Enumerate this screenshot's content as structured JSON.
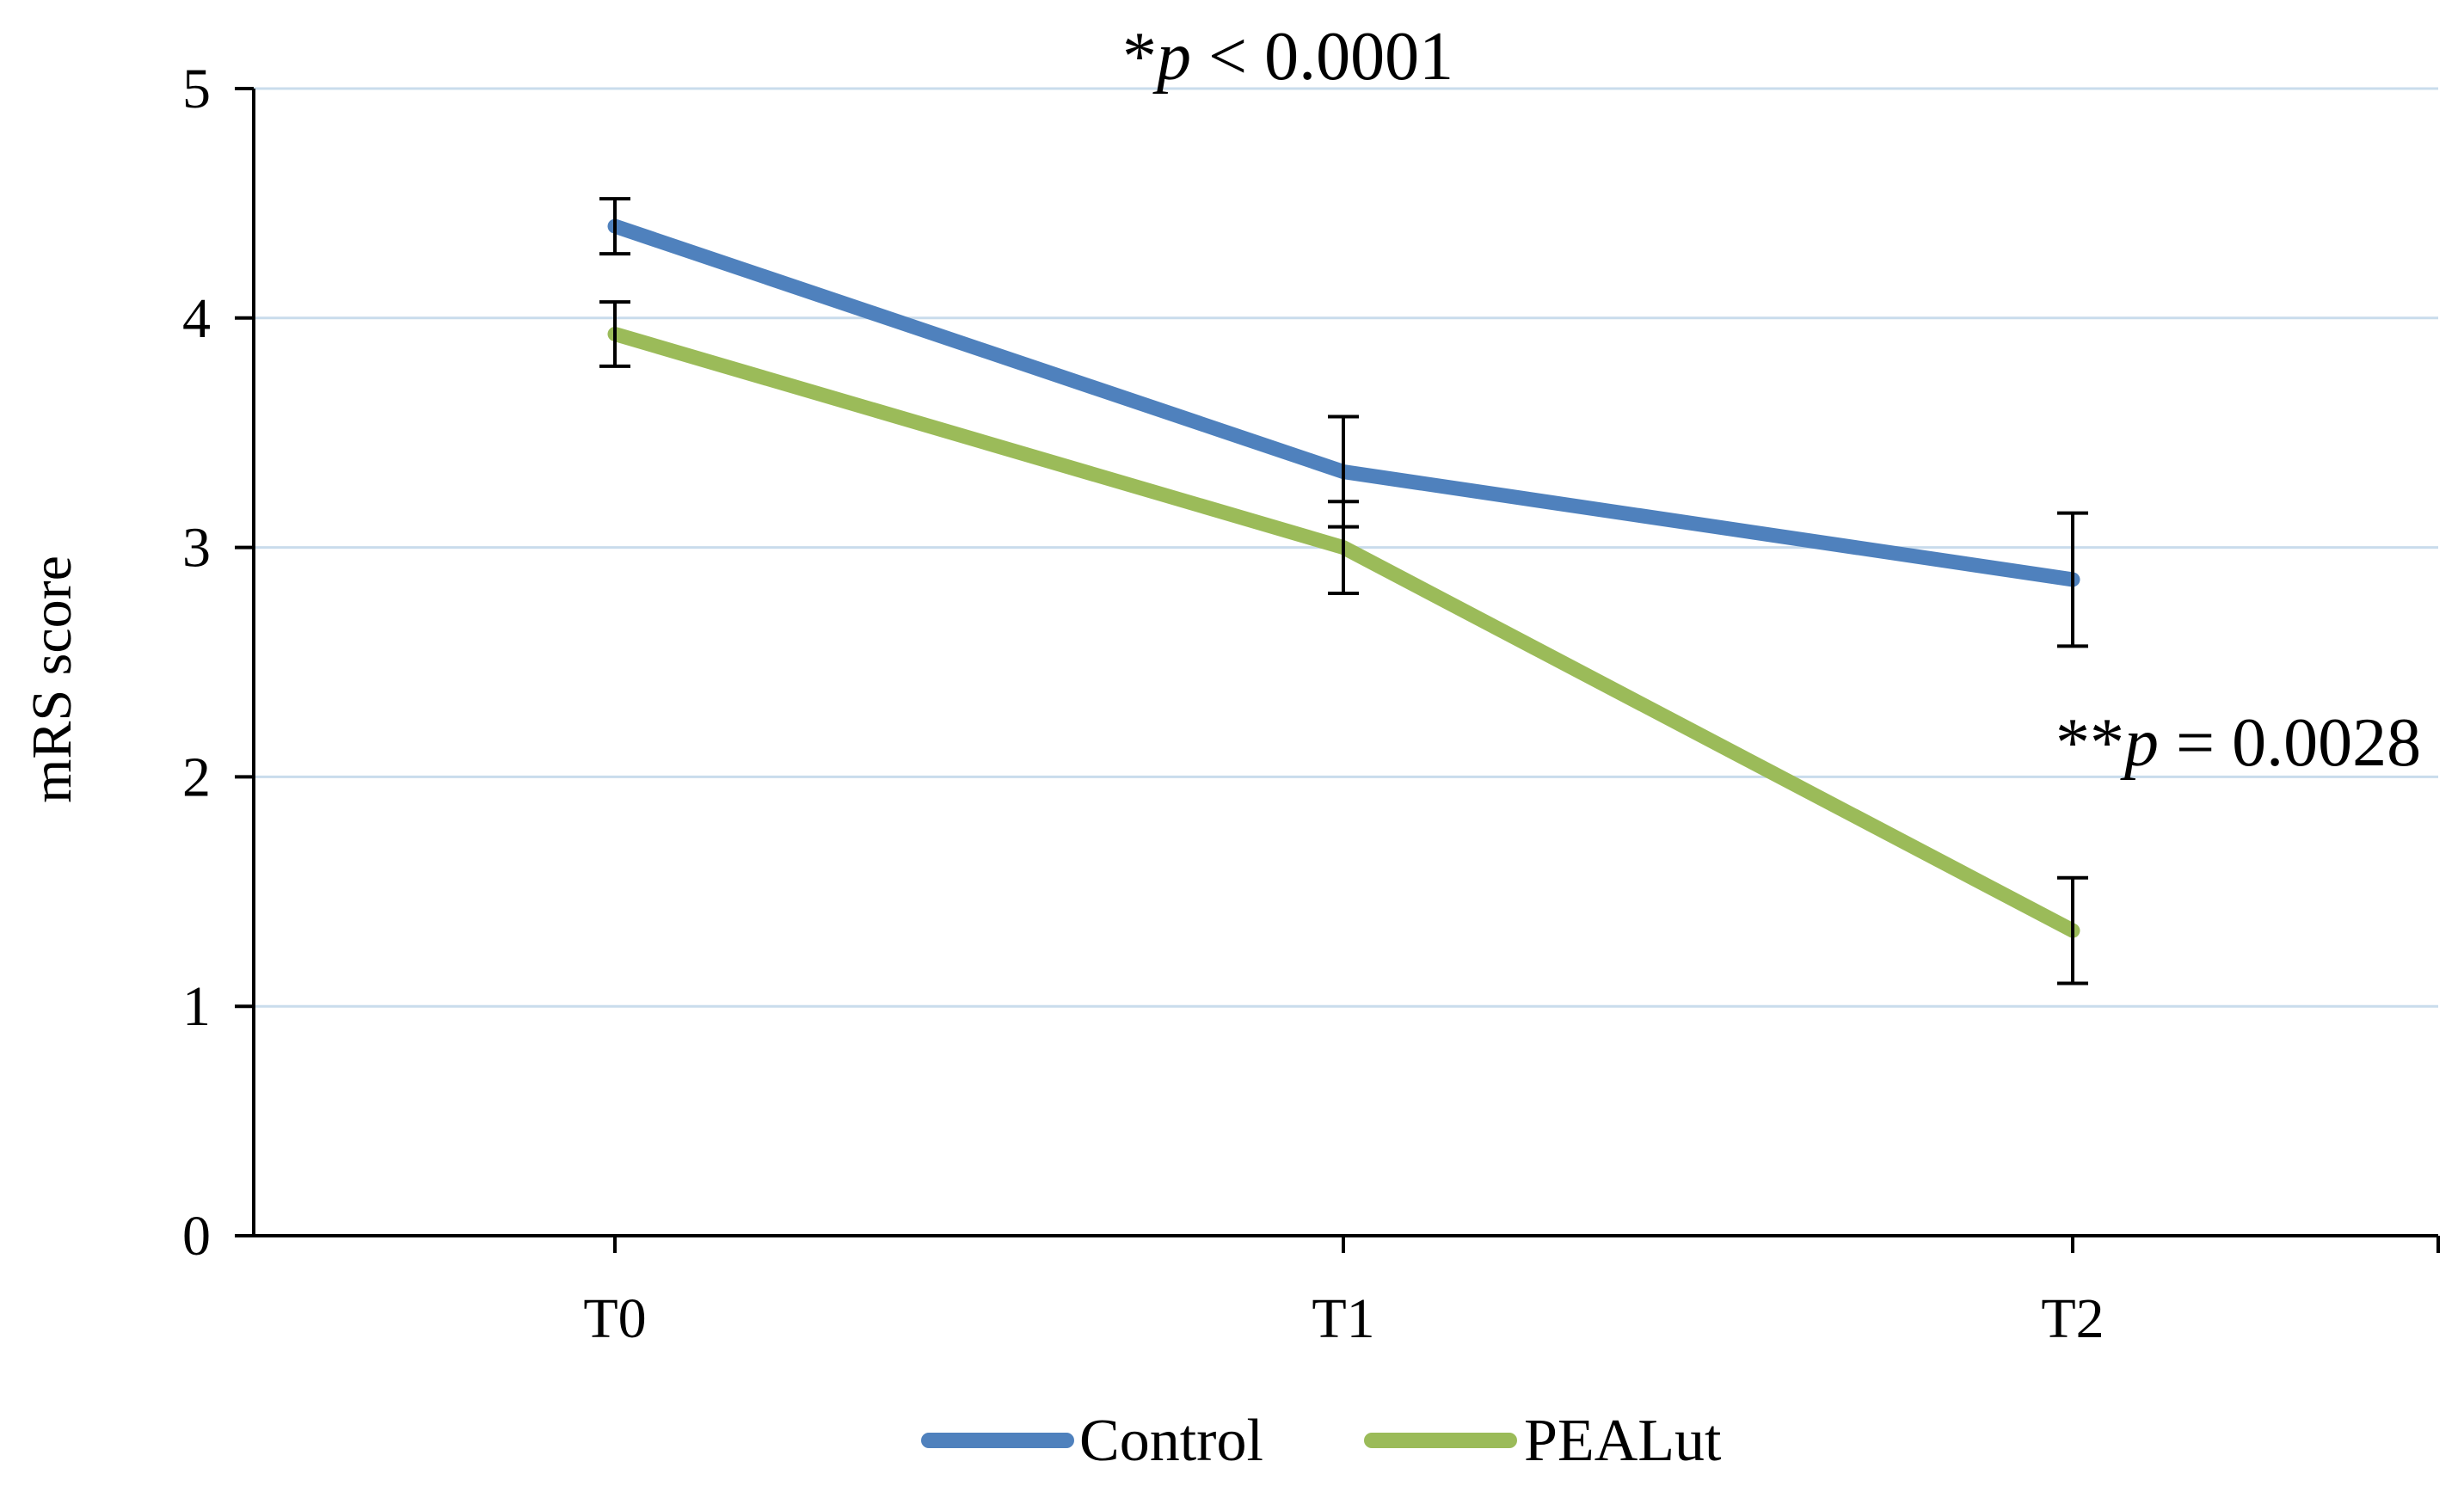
{
  "chart_data": {
    "type": "line",
    "title": "",
    "xlabel": "",
    "ylabel": "mRS score",
    "categories": [
      "T0",
      "T1",
      "T2"
    ],
    "ylim": [
      0,
      5
    ],
    "yticks": [
      "0",
      "1",
      "2",
      "3",
      "4",
      "5"
    ],
    "grid": true,
    "legend_position": "bottom-center",
    "series": [
      {
        "name": "Control",
        "color": "#4f81bd",
        "values": [
          4.4,
          3.33,
          2.86
        ],
        "error": [
          0.12,
          0.24,
          0.29
        ]
      },
      {
        "name": "PEALut",
        "color": "#9bbb59",
        "values": [
          3.93,
          3.0,
          1.33
        ],
        "error": [
          0.14,
          0.2,
          0.23
        ]
      }
    ],
    "annotations": [
      {
        "prefix": "*",
        "symbol": "p",
        "rest": " < 0.0001"
      },
      {
        "prefix": "**",
        "symbol": "p",
        "rest": " = 0.0028"
      }
    ]
  }
}
